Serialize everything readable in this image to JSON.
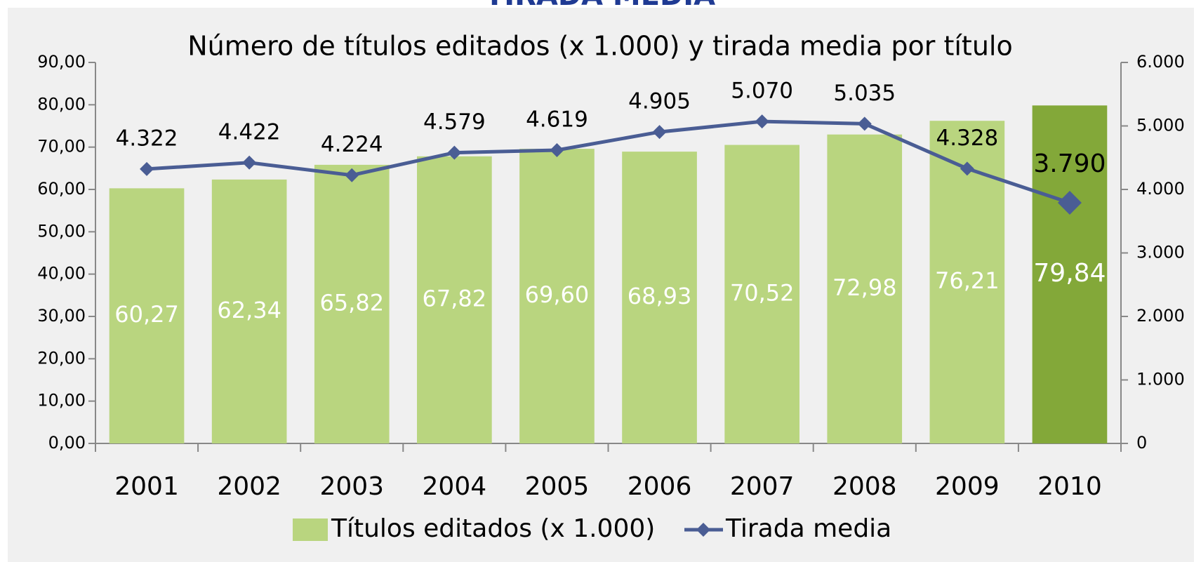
{
  "chart_data": {
    "type": "bar_line",
    "supertitle": "TIRADA MEDIA",
    "title": "Número de títulos editados (x 1.000) y tirada media por título",
    "categories": [
      "2001",
      "2002",
      "2003",
      "2004",
      "2005",
      "2006",
      "2007",
      "2008",
      "2009",
      "2010"
    ],
    "series": [
      {
        "name": "Títulos editados (x 1.000)",
        "type": "bar",
        "color": "#b9d57f",
        "colors": [
          "#b9d57f",
          "#b9d57f",
          "#b9d57f",
          "#b9d57f",
          "#b9d57f",
          "#b9d57f",
          "#b9d57f",
          "#b9d57f",
          "#b9d57f",
          "#83a839"
        ],
        "values": [
          60.27,
          62.34,
          65.82,
          67.82,
          69.6,
          68.93,
          70.52,
          72.98,
          76.21,
          79.84
        ],
        "value_labels": [
          "60,27",
          "62,34",
          "65,82",
          "67,82",
          "69,60",
          "68,93",
          "70,52",
          "72,98",
          "76,21",
          "79,84"
        ]
      },
      {
        "name": "Tirada media",
        "type": "line",
        "axis": "y2",
        "color": "#4a5d94",
        "values": [
          4322,
          4422,
          4224,
          4579,
          4619,
          4905,
          5070,
          5035,
          4328,
          3790
        ],
        "value_labels": [
          "4.322",
          "4.422",
          "4.224",
          "4.579",
          "4.619",
          "4.905",
          "5.070",
          "5.035",
          "4.328",
          "3.790"
        ]
      }
    ],
    "ylim": [
      0,
      90
    ],
    "yticks": [
      {
        "value": 0,
        "label": "0,00"
      },
      {
        "value": 10,
        "label": "10,00"
      },
      {
        "value": 20,
        "label": "20,00"
      },
      {
        "value": 30,
        "label": "30,00"
      },
      {
        "value": 40,
        "label": "40,00"
      },
      {
        "value": 50,
        "label": "50,00"
      },
      {
        "value": 60,
        "label": "60,00"
      },
      {
        "value": 70,
        "label": "70,00"
      },
      {
        "value": 80,
        "label": "80,00"
      },
      {
        "value": 90,
        "label": "90,00"
      }
    ],
    "y2lim": [
      0,
      6000
    ],
    "y2ticks": [
      0,
      {
        "value": 1000,
        "label": "1.000"
      },
      {
        "value": 2000,
        "label": "2.000"
      },
      {
        "value": 3000,
        "label": "3.000"
      },
      {
        "value": 4000,
        "label": "4.000"
      },
      {
        "value": 5000,
        "label": "5.000"
      },
      {
        "value": 6000,
        "label": "6.000"
      }
    ],
    "legend": "bottom"
  }
}
